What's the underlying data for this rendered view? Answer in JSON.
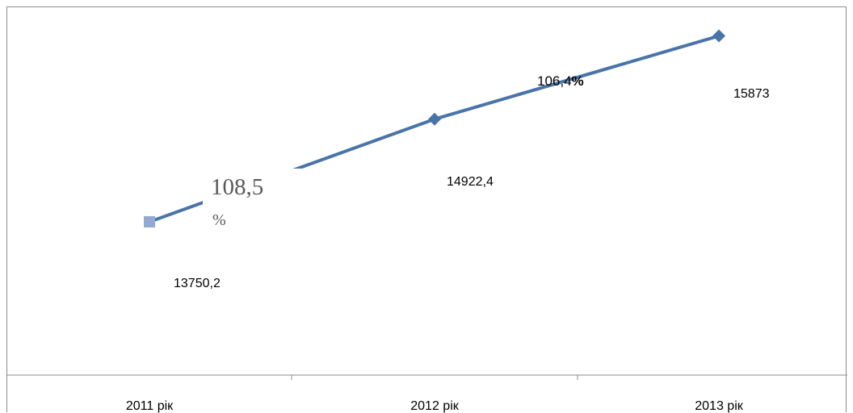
{
  "chart_data": {
    "type": "line",
    "categories": [
      "2011 рік",
      "2012 рік",
      "2013 рік"
    ],
    "series": [
      {
        "values": [
          13750.2,
          14922.4,
          15873
        ],
        "value_labels": [
          "13750,2",
          "14922,4",
          "15873"
        ],
        "color": "#4a74a8",
        "first_marker_color": "#93a9d2"
      }
    ],
    "growth_annotations": [
      {
        "number": "108,5",
        "percent": "%"
      },
      {
        "number": "106,4",
        "percent": "%"
      }
    ],
    "title": "",
    "xlabel": "",
    "ylabel": "",
    "ylim": [
      12000,
      16200
    ],
    "grid": false,
    "legend": "none"
  }
}
